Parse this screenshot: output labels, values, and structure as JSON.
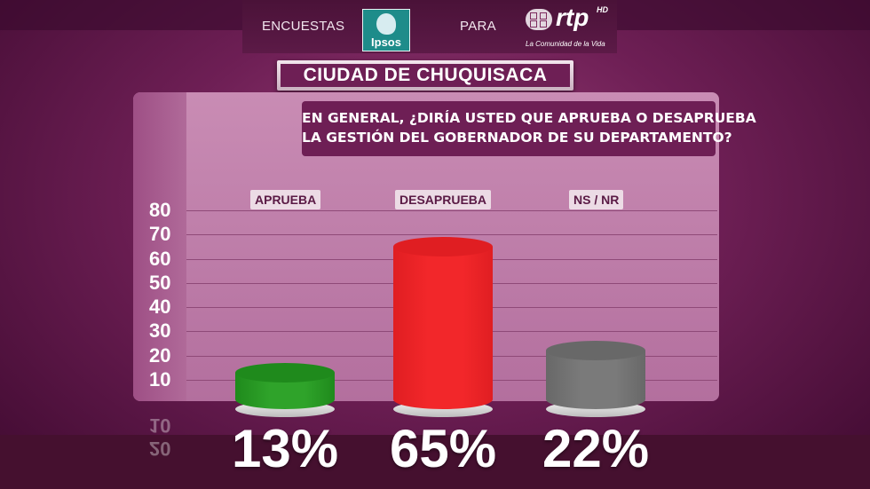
{
  "header": {
    "left_text": "ENCUESTAS",
    "middle_text": "PARA",
    "ipsos_logo_text": "Ipsos",
    "rtp_logo_text": "rtp",
    "rtp_hd": "HD",
    "rtp_slogan": "La Comunidad de la Vida"
  },
  "city_title": "CIUDAD DE CHUQUISACA",
  "question": {
    "line1": "EN GENERAL, ¿DIRÍA USTED QUE APRUEBA O DESAPRUEBA",
    "line2": "LA GESTIÓN DEL GOBERNADOR DE SU DEPARTAMENTO?"
  },
  "colors": {
    "aprueba": "#2fa32a",
    "desaprueba": "#f2272a",
    "nsnr": "#7a7a7a",
    "panel": "#c07ca9"
  },
  "chart_data": {
    "type": "bar",
    "categories": [
      "APRUEBA",
      "DESAPRUEBA",
      "NS / NR"
    ],
    "values": [
      13,
      65,
      22
    ],
    "value_labels": [
      "13%",
      "65%",
      "22%"
    ],
    "yticks": [
      "10",
      "20",
      "30",
      "40",
      "50",
      "60",
      "70",
      "80"
    ],
    "ylim": [
      0,
      80
    ],
    "grid": true,
    "mirrored_ticks": [
      "10",
      "20"
    ]
  }
}
